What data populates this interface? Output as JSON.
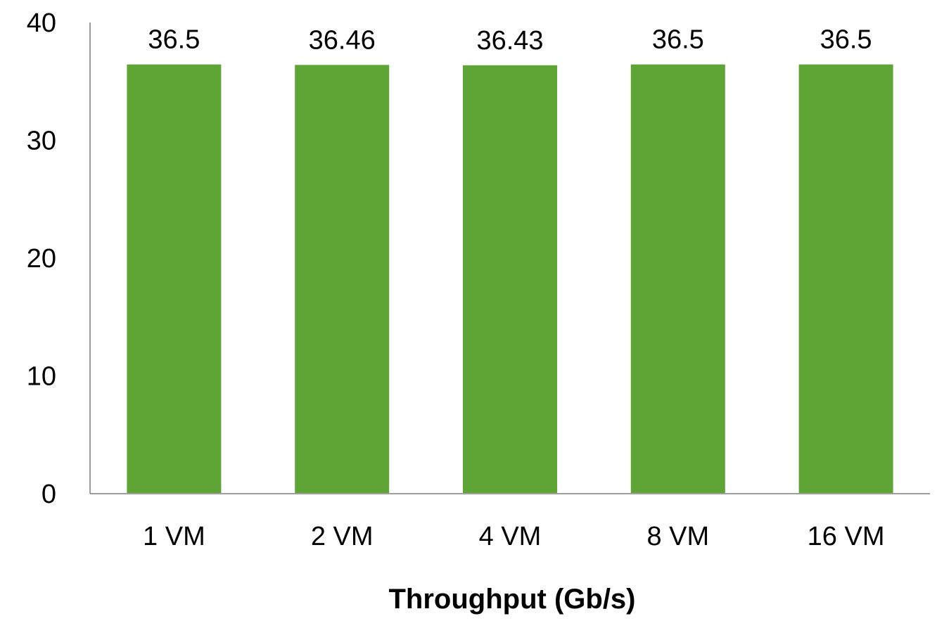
{
  "chart_data": {
    "type": "bar",
    "title": "",
    "xlabel": "Throughput (Gb/s)",
    "ylabel": "",
    "categories": [
      "1 VM",
      "2 VM",
      "4 VM",
      "8 VM",
      "16 VM"
    ],
    "values": [
      36.5,
      36.46,
      36.43,
      36.5,
      36.5
    ],
    "data_labels": [
      "36.5",
      "36.46",
      "36.43",
      "36.5",
      "36.5"
    ],
    "ylim": [
      0,
      40
    ],
    "yticks": [
      "0",
      "10",
      "20",
      "30",
      "40"
    ],
    "grid": false,
    "legend": "none",
    "bar_color": "#5ea535",
    "axis_color": "#7f7f7f"
  }
}
